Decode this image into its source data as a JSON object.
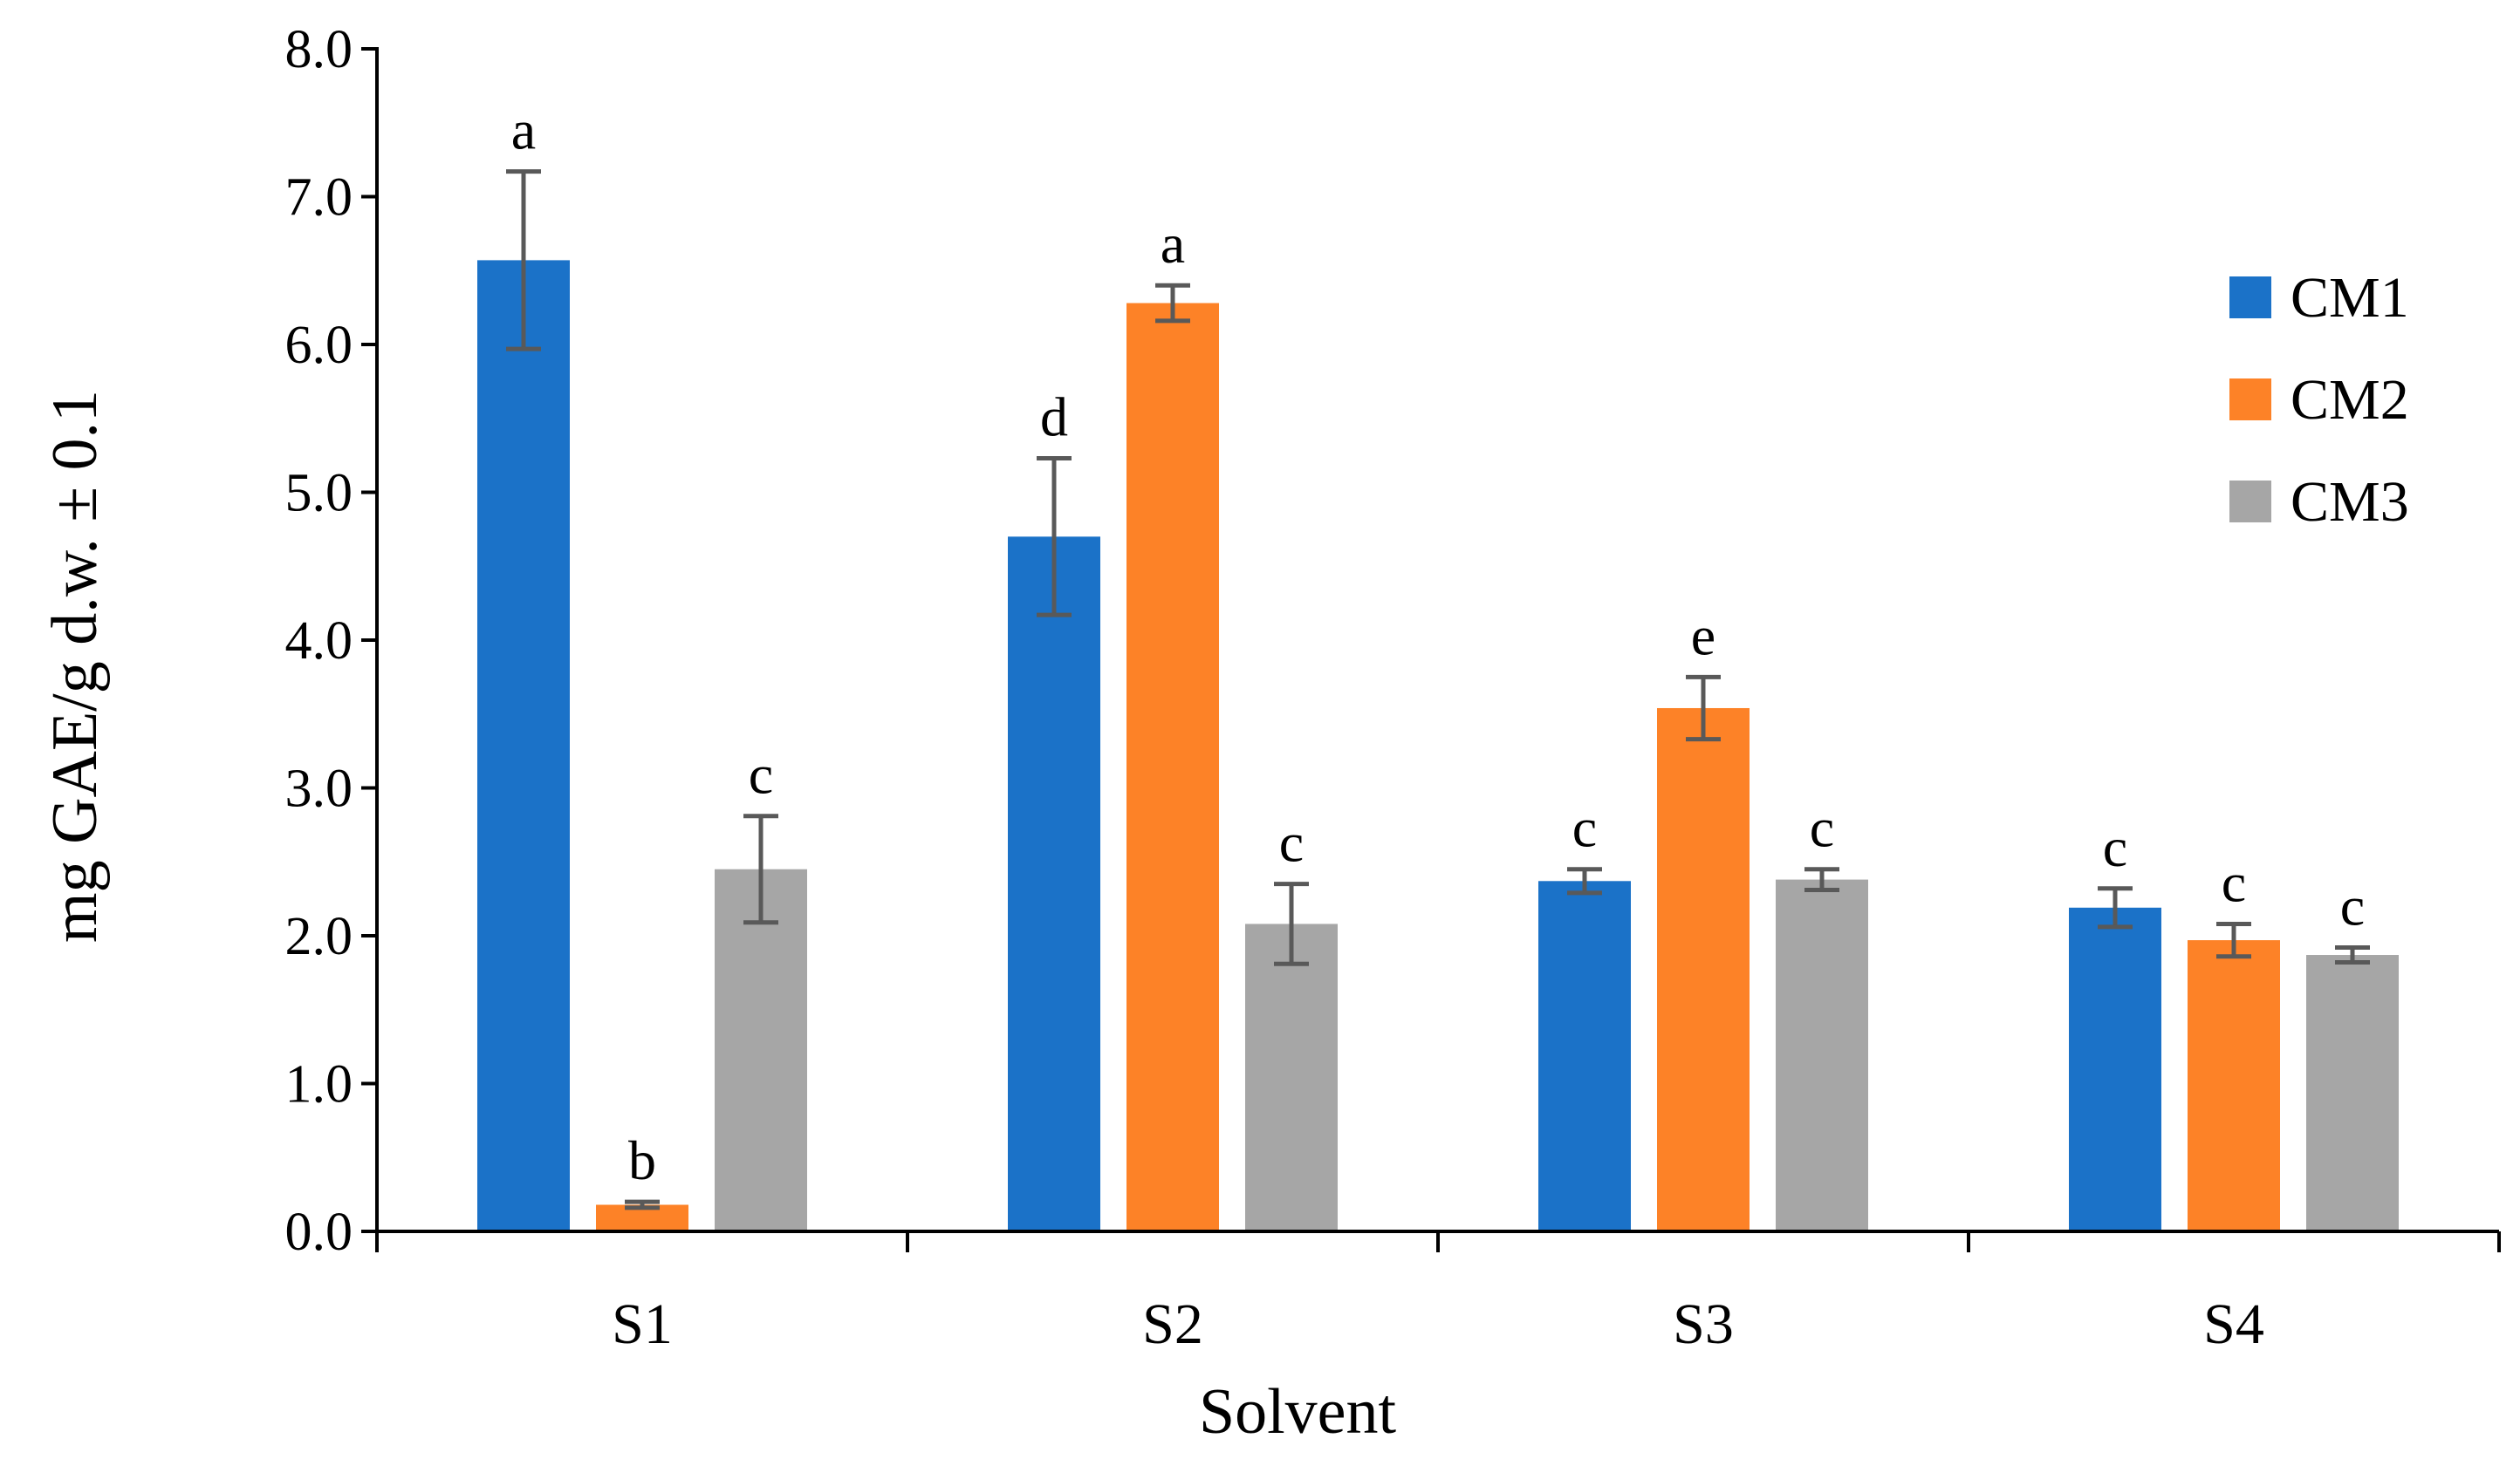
{
  "chart_data": {
    "type": "bar",
    "title": "",
    "xlabel": "Solvent",
    "ylabel": "mg GAE/g d.w. ± 0.1",
    "ylim": [
      0,
      8
    ],
    "ytick_values": [
      0,
      1,
      2,
      3,
      4,
      5,
      6,
      7,
      8
    ],
    "ytick_labels": [
      "0.0",
      "1.0",
      "2.0",
      "3.0",
      "4.0",
      "5.0",
      "6.0",
      "7.0",
      "8.0"
    ],
    "categories": [
      "S1",
      "S2",
      "S3",
      "S4"
    ],
    "legend_position": "right",
    "series": [
      {
        "name": "CM1",
        "color": "#1b72c8",
        "values": [
          6.57,
          4.7,
          2.37,
          2.19
        ],
        "errors": [
          0.6,
          0.53,
          0.08,
          0.13
        ],
        "letters": [
          "a",
          "d",
          "c",
          "c"
        ]
      },
      {
        "name": "CM2",
        "color": "#fd8227",
        "values": [
          0.18,
          6.28,
          3.54,
          1.97
        ],
        "errors": [
          0.02,
          0.12,
          0.21,
          0.11
        ],
        "letters": [
          "b",
          "a",
          "e",
          "c"
        ]
      },
      {
        "name": "CM3",
        "color": "#a6a6a6",
        "values": [
          2.45,
          2.08,
          2.38,
          1.87
        ],
        "errors": [
          0.36,
          0.27,
          0.07,
          0.05
        ],
        "letters": [
          "c",
          "c",
          "c",
          "c"
        ]
      }
    ],
    "error_bar_color": "#595959",
    "axis_color": "#000000"
  }
}
